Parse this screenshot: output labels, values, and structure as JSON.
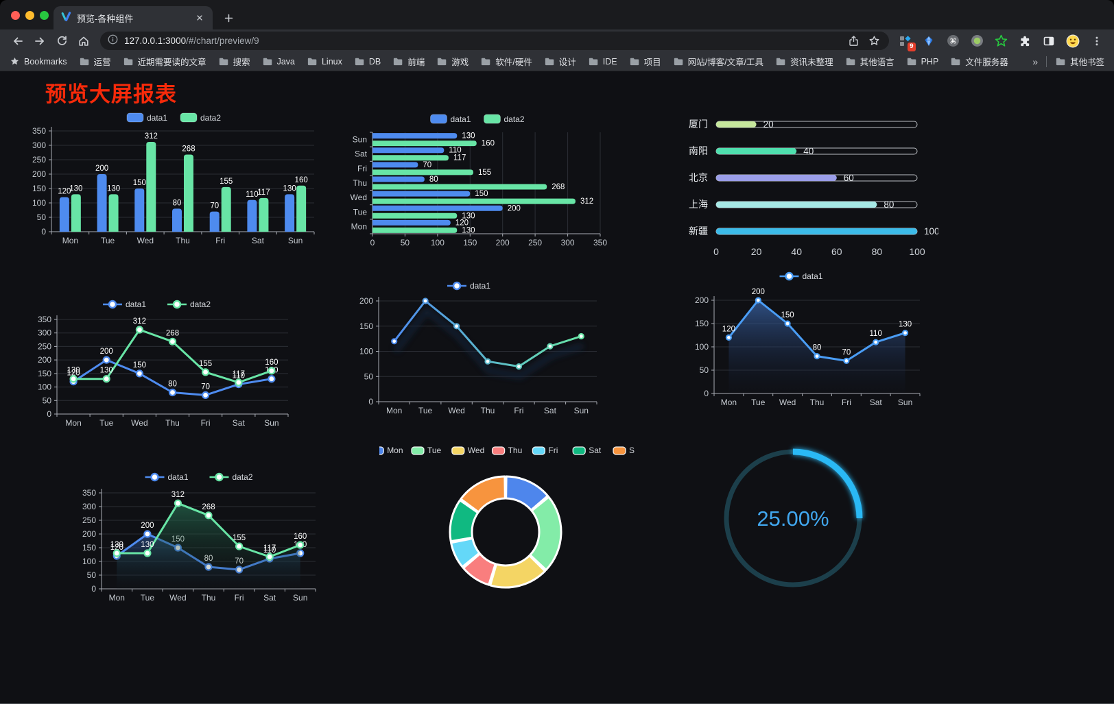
{
  "browser": {
    "tab": {
      "title": "预览-各种组件"
    },
    "url": {
      "host": "127.0.0.1:3000",
      "path": "/#/chart/preview/9"
    },
    "extensions_badge": "9",
    "icons": {
      "nav": [
        "back-icon",
        "forward-icon",
        "reload-icon",
        "home-icon"
      ],
      "url": [
        "info-icon",
        "share-icon",
        "bookmark-star-icon"
      ],
      "extensions": [
        "grid-extension-icon",
        "gem-icon",
        "command-circle-icon",
        "record-circle-icon",
        "green-star-icon",
        "puzzle-icon",
        "sidebar-icon",
        "emoji-icon",
        "menu-dots-icon"
      ]
    },
    "bookmarks_bar": {
      "bookmarks_label": "Bookmarks",
      "folders": [
        "运营",
        "近期需要读的文章",
        "搜索",
        "Java",
        "Linux",
        "DB",
        "前端",
        "游戏",
        "软件/硬件",
        "设计",
        "IDE",
        "项目",
        "网站/博客/文章/工具",
        "资讯未整理",
        "其他语言",
        "PHP",
        "文件服务器"
      ],
      "overflow": "»",
      "other_bookmarks": "其他书签"
    }
  },
  "page": {
    "title": "预览大屏报表"
  },
  "chart_data": [
    {
      "type": "bar",
      "categories": [
        "Mon",
        "Tue",
        "Wed",
        "Thu",
        "Fri",
        "Sat",
        "Sun"
      ],
      "series": [
        {
          "name": "data1",
          "color": "#4e8bef",
          "values": [
            120,
            200,
            150,
            80,
            70,
            110,
            130
          ]
        },
        {
          "name": "data2",
          "color": "#68e5a6",
          "values": [
            130,
            130,
            312,
            268,
            155,
            117,
            160
          ]
        }
      ],
      "ylim": [
        0,
        350
      ],
      "ytick_step": 50,
      "legend_position": "top",
      "grid": true
    },
    {
      "type": "hbar",
      "categories": [
        "Mon",
        "Tue",
        "Wed",
        "Thu",
        "Fri",
        "Sat",
        "Sun"
      ],
      "series": [
        {
          "name": "data1",
          "color": "#4e8bef",
          "values": [
            120,
            200,
            150,
            80,
            70,
            110,
            130
          ]
        },
        {
          "name": "data2",
          "color": "#68e5a6",
          "values": [
            130,
            130,
            312,
            268,
            155,
            117,
            160
          ]
        }
      ],
      "xlim": [
        0,
        350
      ],
      "xtick_step": 50,
      "legend_position": "top",
      "grid": true
    },
    {
      "type": "progress",
      "max": 100,
      "xticks": [
        0,
        20,
        40,
        60,
        80,
        100
      ],
      "rows": [
        {
          "label": "厦门",
          "value": 20,
          "color": "#c6e79c"
        },
        {
          "label": "南阳",
          "value": 40,
          "color": "#4fdfae"
        },
        {
          "label": "北京",
          "value": 60,
          "color": "#9b9ee9"
        },
        {
          "label": "上海",
          "value": 80,
          "color": "#a6e9e6"
        },
        {
          "label": "新疆",
          "value": 100,
          "color": "#3cbbe9"
        }
      ]
    },
    {
      "type": "line",
      "categories": [
        "Mon",
        "Tue",
        "Wed",
        "Thu",
        "Fri",
        "Sat",
        "Sun"
      ],
      "series": [
        {
          "name": "data1",
          "color": "#4e8bef",
          "values": [
            120,
            200,
            150,
            80,
            70,
            110,
            130
          ]
        },
        {
          "name": "data2",
          "color": "#68e5a6",
          "values": [
            130,
            130,
            312,
            268,
            155,
            117,
            160
          ]
        }
      ],
      "ylim": [
        0,
        350
      ],
      "ytick_step": 50,
      "show_labels": true,
      "legend_position": "top",
      "grid": true
    },
    {
      "type": "line",
      "categories": [
        "Mon",
        "Tue",
        "Wed",
        "Thu",
        "Fri",
        "Sat",
        "Sun"
      ],
      "series": [
        {
          "name": "data1",
          "gradient": [
            "#4e8bef",
            "#68e5a6"
          ],
          "values": [
            120,
            200,
            150,
            80,
            70,
            110,
            130
          ]
        }
      ],
      "ylim": [
        0,
        200
      ],
      "ytick_step": 50,
      "show_labels": false,
      "shadow": true,
      "legend_position": "top",
      "grid": true
    },
    {
      "type": "line",
      "categories": [
        "Mon",
        "Tue",
        "Wed",
        "Thu",
        "Fri",
        "Sat",
        "Sun"
      ],
      "series": [
        {
          "name": "data1",
          "color": "#4a9df5",
          "area": true,
          "area_color": [
            "rgba(59,102,170,0.75)",
            "rgba(18,28,52,0.05)"
          ],
          "values": [
            120,
            200,
            150,
            80,
            70,
            110,
            130
          ]
        }
      ],
      "ylim": [
        0,
        200
      ],
      "ytick_step": 50,
      "show_labels": true,
      "legend_position": "top",
      "grid": true
    },
    {
      "type": "line",
      "categories": [
        "Mon",
        "Tue",
        "Wed",
        "Thu",
        "Fri",
        "Sat",
        "Sun"
      ],
      "series": [
        {
          "name": "data1",
          "color": "#4e8bef",
          "area": true,
          "area_color": [
            "rgba(47,90,158,0.60)",
            "rgba(16,24,40,0.04)"
          ],
          "values": [
            120,
            200,
            150,
            80,
            70,
            110,
            130
          ]
        },
        {
          "name": "data2",
          "color": "#68e5a6",
          "area": true,
          "area_color": [
            "rgba(40,116,86,0.65)",
            "rgba(16,30,26,0.04)"
          ],
          "values": [
            130,
            130,
            312,
            268,
            155,
            117,
            160
          ]
        }
      ],
      "ylim": [
        0,
        350
      ],
      "ytick_step": 50,
      "show_labels": true,
      "legend_position": "top",
      "grid": true
    },
    {
      "type": "pie",
      "inner_radius_ratio": 0.6,
      "categories": [
        "Mon",
        "Tue",
        "Wed",
        "Thu",
        "Fri",
        "Sat",
        "Sun"
      ],
      "values": [
        120,
        200,
        150,
        80,
        70,
        110,
        130
      ],
      "colors": [
        "#4e86ec",
        "#83eca8",
        "#f4d564",
        "#f97e7e",
        "#64d8f8",
        "#10b981",
        "#f7943e"
      ],
      "legend_position": "top"
    },
    {
      "type": "gauge",
      "percent": 25,
      "label": "25.00%",
      "color": "#2bb9f5",
      "track_color": "#1c3f4b",
      "text_color": "#41a7ef"
    }
  ]
}
